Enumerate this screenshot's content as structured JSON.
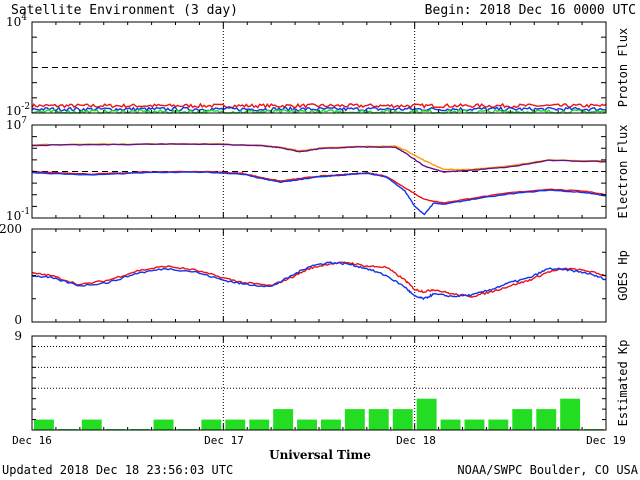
{
  "header": {
    "title": "Satellite Environment (3 day)",
    "begin": "Begin:  2018 Dec 16 0000 UTC"
  },
  "footer": {
    "updated": "Updated 2018 Dec 18 23:56:03 UTC",
    "credit": "NOAA/SWPC Boulder, CO USA",
    "xlabel": "Universal Time"
  },
  "colors": {
    "red": "#ee1111",
    "blue": "#1133ee",
    "green": "#22dd22",
    "orange": "#ff9900",
    "purple": "#661188",
    "grid": "#000000"
  },
  "chart_data": [
    {
      "type": "line",
      "panel": "proton",
      "ylabel": "Proton Flux",
      "yscale": "log",
      "ylim": [
        0.01,
        10000
      ],
      "yticks": [
        {
          "base": "10",
          "exp": "4",
          "value": 10000
        },
        {
          "base": "10",
          "exp": "-2",
          "value": 0.01
        }
      ],
      "threshold": 10,
      "x_unit": "day",
      "xlim": [
        0,
        3
      ],
      "series": [
        {
          "color": "red",
          "x": [
            0,
            3
          ],
          "y": [
            0.03,
            0.03
          ],
          "noise_decades": 0.12
        },
        {
          "color": "blue",
          "x": [
            0,
            3
          ],
          "y": [
            0.018,
            0.018
          ],
          "noise_decades": 0.12
        },
        {
          "color": "green",
          "x": [
            0,
            3
          ],
          "y": [
            0.012,
            0.012
          ],
          "noise_decades": 0.14
        }
      ]
    },
    {
      "type": "line",
      "panel": "electron",
      "ylabel": "Electron Flux",
      "yscale": "log",
      "ylim": [
        0.1,
        10000000
      ],
      "yticks": [
        {
          "base": "10",
          "exp": "7",
          "value": 10000000
        },
        {
          "base": "10",
          "exp": "-1",
          "value": 0.1
        }
      ],
      "threshold": 1000,
      "x_unit": "day",
      "xlim": [
        0,
        3
      ],
      "series": [
        {
          "color": "orange",
          "x": [
            0,
            0.3,
            0.6,
            0.9,
            1.2,
            1.3,
            1.4,
            1.5,
            1.7,
            1.9,
            1.95,
            2.05,
            2.15,
            2.3,
            2.5,
            2.7,
            3
          ],
          "y": [
            200000,
            220000,
            230000,
            240000,
            180000,
            120000,
            60000,
            100000,
            140000,
            150000,
            70000,
            9000,
            1500,
            1500,
            3000,
            10000,
            8000
          ]
        },
        {
          "color": "purple",
          "x": [
            0,
            0.3,
            0.6,
            0.9,
            1.2,
            1.3,
            1.4,
            1.5,
            1.7,
            1.9,
            1.95,
            2.05,
            2.15,
            2.3,
            2.5,
            2.7,
            3
          ],
          "y": [
            180000,
            200000,
            220000,
            230000,
            170000,
            110000,
            50000,
            90000,
            130000,
            120000,
            40000,
            3000,
            900,
            1300,
            2500,
            9000,
            7000
          ]
        },
        {
          "color": "red",
          "x": [
            0,
            0.3,
            0.6,
            0.9,
            1.1,
            1.2,
            1.3,
            1.4,
            1.5,
            1.6,
            1.75,
            1.85,
            1.95,
            2.05,
            2.15,
            2.3,
            2.5,
            2.7,
            2.9,
            3
          ],
          "y": [
            1000,
            600,
            900,
            1000,
            700,
            300,
            150,
            250,
            400,
            500,
            800,
            400,
            40,
            4,
            2,
            5,
            15,
            30,
            20,
            10
          ]
        },
        {
          "color": "blue",
          "x": [
            0,
            0.3,
            0.6,
            0.9,
            1.1,
            1.2,
            1.3,
            1.4,
            1.5,
            1.6,
            1.75,
            1.85,
            1.95,
            2.0,
            2.05,
            2.1,
            2.15,
            2.3,
            2.5,
            2.7,
            2.9,
            3
          ],
          "y": [
            800,
            500,
            800,
            900,
            600,
            250,
            120,
            200,
            350,
            450,
            700,
            350,
            20,
            1,
            0.2,
            2,
            1.5,
            4,
            12,
            25,
            15,
            8
          ]
        }
      ]
    },
    {
      "type": "line",
      "panel": "goes_hp",
      "ylabel": "GOES Hp",
      "yscale": "linear",
      "ylim": [
        0,
        200
      ],
      "yticks": [
        {
          "label": "200",
          "value": 200
        },
        {
          "label": "0",
          "value": 0
        }
      ],
      "x_unit": "day",
      "xlim": [
        0,
        3
      ],
      "series": [
        {
          "color": "red",
          "x": [
            0,
            0.1,
            0.25,
            0.4,
            0.55,
            0.7,
            0.85,
            1.0,
            1.1,
            1.25,
            1.35,
            1.45,
            1.55,
            1.65,
            1.75,
            1.85,
            1.95,
            2.0,
            2.05,
            2.1,
            2.2,
            2.3,
            2.4,
            2.5,
            2.6,
            2.7,
            2.8,
            2.9,
            3
          ],
          "y": [
            105,
            100,
            80,
            90,
            110,
            120,
            112,
            95,
            85,
            78,
            95,
            115,
            125,
            128,
            120,
            118,
            90,
            70,
            65,
            70,
            60,
            55,
            65,
            78,
            90,
            108,
            115,
            110,
            100
          ]
        },
        {
          "color": "blue",
          "x": [
            0,
            0.1,
            0.25,
            0.4,
            0.55,
            0.7,
            0.85,
            1.0,
            1.1,
            1.25,
            1.35,
            1.45,
            1.55,
            1.65,
            1.75,
            1.85,
            1.95,
            2.0,
            2.05,
            2.1,
            2.2,
            2.3,
            2.4,
            2.5,
            2.6,
            2.7,
            2.8,
            2.9,
            3
          ],
          "y": [
            100,
            95,
            78,
            85,
            105,
            115,
            108,
            90,
            82,
            76,
            98,
            120,
            128,
            125,
            115,
            100,
            75,
            55,
            50,
            60,
            55,
            58,
            70,
            85,
            95,
            115,
            112,
            105,
            92
          ]
        }
      ]
    },
    {
      "type": "bar",
      "panel": "kp",
      "ylabel": "Estimated Kp",
      "ylim": [
        0,
        9
      ],
      "yticks": [
        {
          "label": "9",
          "value": 9
        }
      ],
      "dotted_levels": [
        4,
        6,
        8
      ],
      "bar_color": "green",
      "bin_hours": 3,
      "values": [
        1,
        0.1,
        1,
        0.1,
        0.1,
        1,
        0.1,
        1,
        1,
        1,
        2,
        1,
        1,
        2,
        2,
        2,
        3,
        1,
        1,
        1,
        2,
        2,
        3,
        0.1
      ]
    }
  ],
  "xaxis": {
    "labels": [
      "Dec 16",
      "Dec 17",
      "Dec 18",
      "Dec 19"
    ],
    "days": [
      0,
      1,
      2,
      3
    ]
  }
}
